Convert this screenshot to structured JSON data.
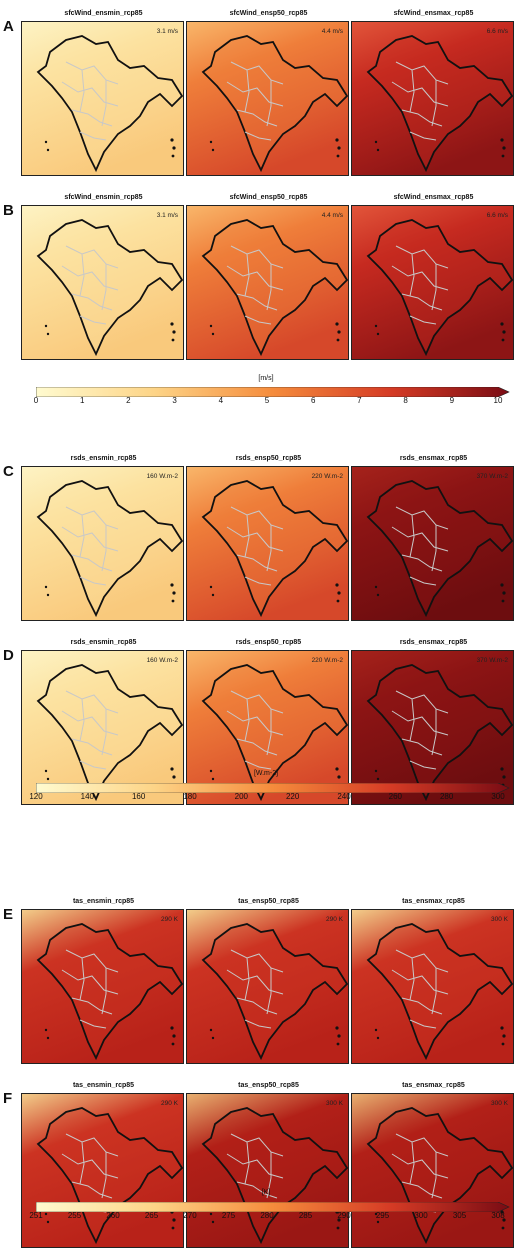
{
  "rows": [
    {
      "letter": "A",
      "panels": [
        {
          "title": "sfcWind_ensmin_rcp85",
          "value": "3.1 m/s",
          "palette": "light"
        },
        {
          "title": "sfcWind_ensp50_rcp85",
          "value": "4.4 m/s",
          "palette": "mid"
        },
        {
          "title": "sfcWind_ensmax_rcp85",
          "value": "6.6 m/s",
          "palette": "dark"
        }
      ]
    },
    {
      "letter": "B",
      "panels": [
        {
          "title": "sfcWind_ensmin_rcp85",
          "value": "3.1 m/s",
          "palette": "light"
        },
        {
          "title": "sfcWind_ensp50_rcp85",
          "value": "4.4 m/s",
          "palette": "mid"
        },
        {
          "title": "sfcWind_ensmax_rcp85",
          "value": "6.6 m/s",
          "palette": "dark"
        }
      ]
    },
    {
      "letter": "C",
      "panels": [
        {
          "title": "rsds_ensmin_rcp85",
          "value": "160 W.m-2",
          "palette": "light"
        },
        {
          "title": "rsds_ensp50_rcp85",
          "value": "220 W.m-2",
          "palette": "mid"
        },
        {
          "title": "rsds_ensmax_rcp85",
          "value": "370 W.m-2",
          "palette": "darkest"
        }
      ]
    },
    {
      "letter": "D",
      "panels": [
        {
          "title": "rsds_ensmin_rcp85",
          "value": "160 W.m-2",
          "palette": "light"
        },
        {
          "title": "rsds_ensp50_rcp85",
          "value": "220 W.m-2",
          "palette": "mid"
        },
        {
          "title": "rsds_ensmax_rcp85",
          "value": "370 W.m-2",
          "palette": "darkest"
        }
      ]
    },
    {
      "letter": "E",
      "panels": [
        {
          "title": "tas_ensmin_rcp85",
          "value": "290 K",
          "palette": "red"
        },
        {
          "title": "tas_ensp50_rcp85",
          "value": "290 K",
          "palette": "red"
        },
        {
          "title": "tas_ensmax_rcp85",
          "value": "300 K",
          "palette": "red"
        }
      ]
    },
    {
      "letter": "F",
      "panels": [
        {
          "title": "tas_ensmin_rcp85",
          "value": "290 K",
          "palette": "red"
        },
        {
          "title": "tas_ensp50_rcp85",
          "value": "300 K",
          "palette": "darkred"
        },
        {
          "title": "tas_ensmax_rcp85",
          "value": "300 K",
          "palette": "darkred"
        }
      ]
    }
  ],
  "colorbars": [
    {
      "label": "[m/s]",
      "ticks": [
        "0",
        "1",
        "2",
        "3",
        "4",
        "5",
        "6",
        "7",
        "8",
        "9",
        "10"
      ]
    },
    {
      "label": "[W.m-2]",
      "ticks": [
        "120",
        "140",
        "160",
        "180",
        "200",
        "220",
        "240",
        "260",
        "280",
        "300"
      ]
    },
    {
      "label": "[K]",
      "ticks": [
        "251",
        "255",
        "260",
        "265",
        "270",
        "275",
        "280",
        "285",
        "290",
        "295",
        "300",
        "305",
        "308"
      ]
    }
  ],
  "colors": {
    "light": "#fde6a6",
    "mid": "#f08a3c",
    "dark": "#c62a20",
    "darkest": "#8c1414",
    "red": "#c4281e",
    "darkred": "#a91d18"
  },
  "chart_data": {
    "type": "heatmap",
    "title": "",
    "rows": [
      "A",
      "B",
      "C",
      "D",
      "E",
      "F"
    ],
    "columns": [
      "ensmin",
      "ensp50",
      "ensmax"
    ],
    "variables": {
      "A": {
        "variable": "sfcWind",
        "unit": "m/s",
        "values": [
          3.1,
          4.4,
          6.6
        ]
      },
      "B": {
        "variable": "sfcWind",
        "unit": "m/s",
        "values": [
          3.1,
          4.4,
          6.6
        ]
      },
      "C": {
        "variable": "rsds",
        "unit": "W.m-2",
        "values": [
          160,
          220,
          370
        ]
      },
      "D": {
        "variable": "rsds",
        "unit": "W.m-2",
        "values": [
          160,
          220,
          370
        ]
      },
      "E": {
        "variable": "tas",
        "unit": "K",
        "values": [
          290,
          290,
          300
        ]
      },
      "F": {
        "variable": "tas",
        "unit": "K",
        "values": [
          290,
          300,
          300
        ]
      }
    },
    "colorbar_ranges": {
      "m/s": [
        0,
        10
      ],
      "W.m-2": [
        120,
        300
      ],
      "K": [
        251,
        308
      ]
    }
  }
}
